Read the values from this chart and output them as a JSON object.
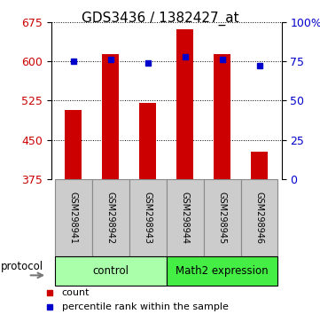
{
  "title": "GDS3436 / 1382427_at",
  "samples": [
    "GSM298941",
    "GSM298942",
    "GSM298943",
    "GSM298944",
    "GSM298945",
    "GSM298946"
  ],
  "counts": [
    507,
    613,
    521,
    661,
    613,
    427
  ],
  "percentiles": [
    75,
    76,
    74,
    78,
    76,
    72
  ],
  "ylim_left": [
    375,
    675
  ],
  "yticks_left": [
    375,
    450,
    525,
    600,
    675
  ],
  "ylim_right": [
    0,
    100
  ],
  "yticks_right": [
    0,
    25,
    50,
    75,
    100
  ],
  "ytick_labels_right": [
    "0",
    "25",
    "50",
    "75",
    "100%"
  ],
  "bar_color": "#cc0000",
  "dot_color": "#0000cc",
  "bar_width": 0.45,
  "groups": [
    {
      "label": "control",
      "indices": [
        0,
        1,
        2
      ],
      "color": "#aaffaa"
    },
    {
      "label": "Math2 expression",
      "indices": [
        3,
        4,
        5
      ],
      "color": "#44ee44"
    }
  ],
  "protocol_label": "protocol",
  "legend_items": [
    {
      "color": "#cc0000",
      "label": "count"
    },
    {
      "color": "#0000cc",
      "label": "percentile rank within the sample"
    }
  ],
  "sample_label_bg": "#cccccc",
  "sample_label_border": "#888888"
}
